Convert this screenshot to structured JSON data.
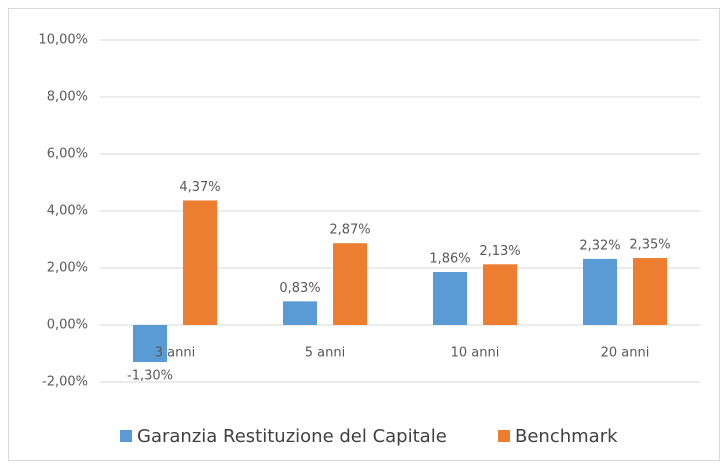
{
  "chart_data": {
    "type": "bar",
    "categories": [
      "3 anni",
      "5 anni",
      "10 anni",
      "20 anni"
    ],
    "series": [
      {
        "name": "Garanzia Restituzione del Capitale",
        "color": "#5b9bd5",
        "values": [
          -1.3,
          0.83,
          1.86,
          2.32
        ],
        "value_labels": [
          "-1,30%",
          "0,83%",
          "1,86%",
          "2,32%"
        ]
      },
      {
        "name": "Benchmark",
        "color": "#ed7d31",
        "values": [
          4.37,
          2.87,
          2.13,
          2.35
        ],
        "value_labels": [
          "4,37%",
          "2,87%",
          "2,13%",
          "2,35%"
        ]
      }
    ],
    "ylim": [
      -2,
      10
    ],
    "yticks": [
      {
        "value": -2,
        "label": "-2,00%"
      },
      {
        "value": 0,
        "label": "0,00%"
      },
      {
        "value": 2,
        "label": "2,00%"
      },
      {
        "value": 4,
        "label": "4,00%"
      },
      {
        "value": 6,
        "label": "6,00%"
      },
      {
        "value": 8,
        "label": "8,00%"
      },
      {
        "value": 10,
        "label": "10,00%"
      }
    ],
    "grid": true,
    "legend": "bottom"
  }
}
